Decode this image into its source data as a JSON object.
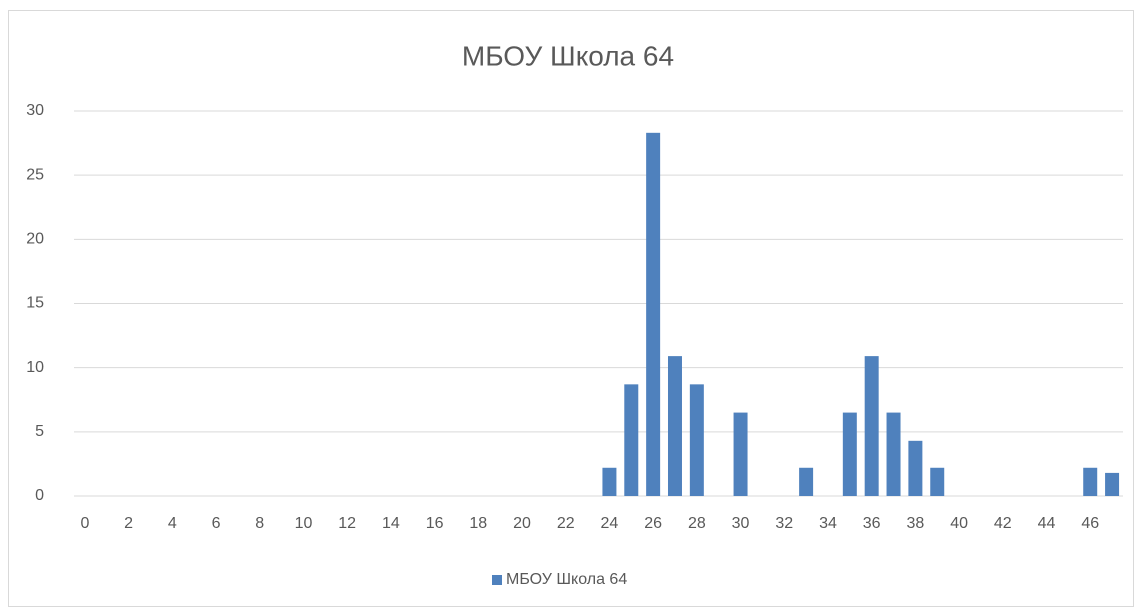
{
  "chart_data": {
    "type": "bar",
    "title": "МБОУ Школа 64",
    "categories": [
      0,
      null,
      2,
      null,
      4,
      null,
      6,
      null,
      8,
      null,
      10,
      null,
      12,
      null,
      14,
      null,
      16,
      null,
      18,
      null,
      20,
      null,
      22,
      null,
      24,
      null,
      26,
      null,
      28,
      null,
      30,
      null,
      32,
      null,
      34,
      null,
      36,
      null,
      38,
      null,
      40,
      null,
      42,
      null,
      44,
      null,
      46,
      null
    ],
    "series": [
      {
        "name": "МБОУ Школа 64",
        "color": "#4f81bd",
        "values": [
          0,
          0,
          0,
          0,
          0,
          0,
          0,
          0,
          0,
          0,
          0,
          0,
          0,
          0,
          0,
          0,
          0,
          0,
          0,
          0,
          0,
          0,
          0,
          0,
          2.2,
          8.7,
          28.3,
          10.9,
          8.7,
          0,
          6.5,
          0,
          0,
          2.2,
          0,
          6.5,
          10.9,
          6.5,
          4.3,
          2.2,
          0,
          0,
          0,
          0,
          0,
          0,
          2.2,
          1.8
        ]
      }
    ],
    "ylim": [
      0,
      30
    ],
    "yticks": [
      0,
      5,
      10,
      15,
      20,
      25,
      30
    ],
    "grid": true,
    "legend": "bottom"
  }
}
